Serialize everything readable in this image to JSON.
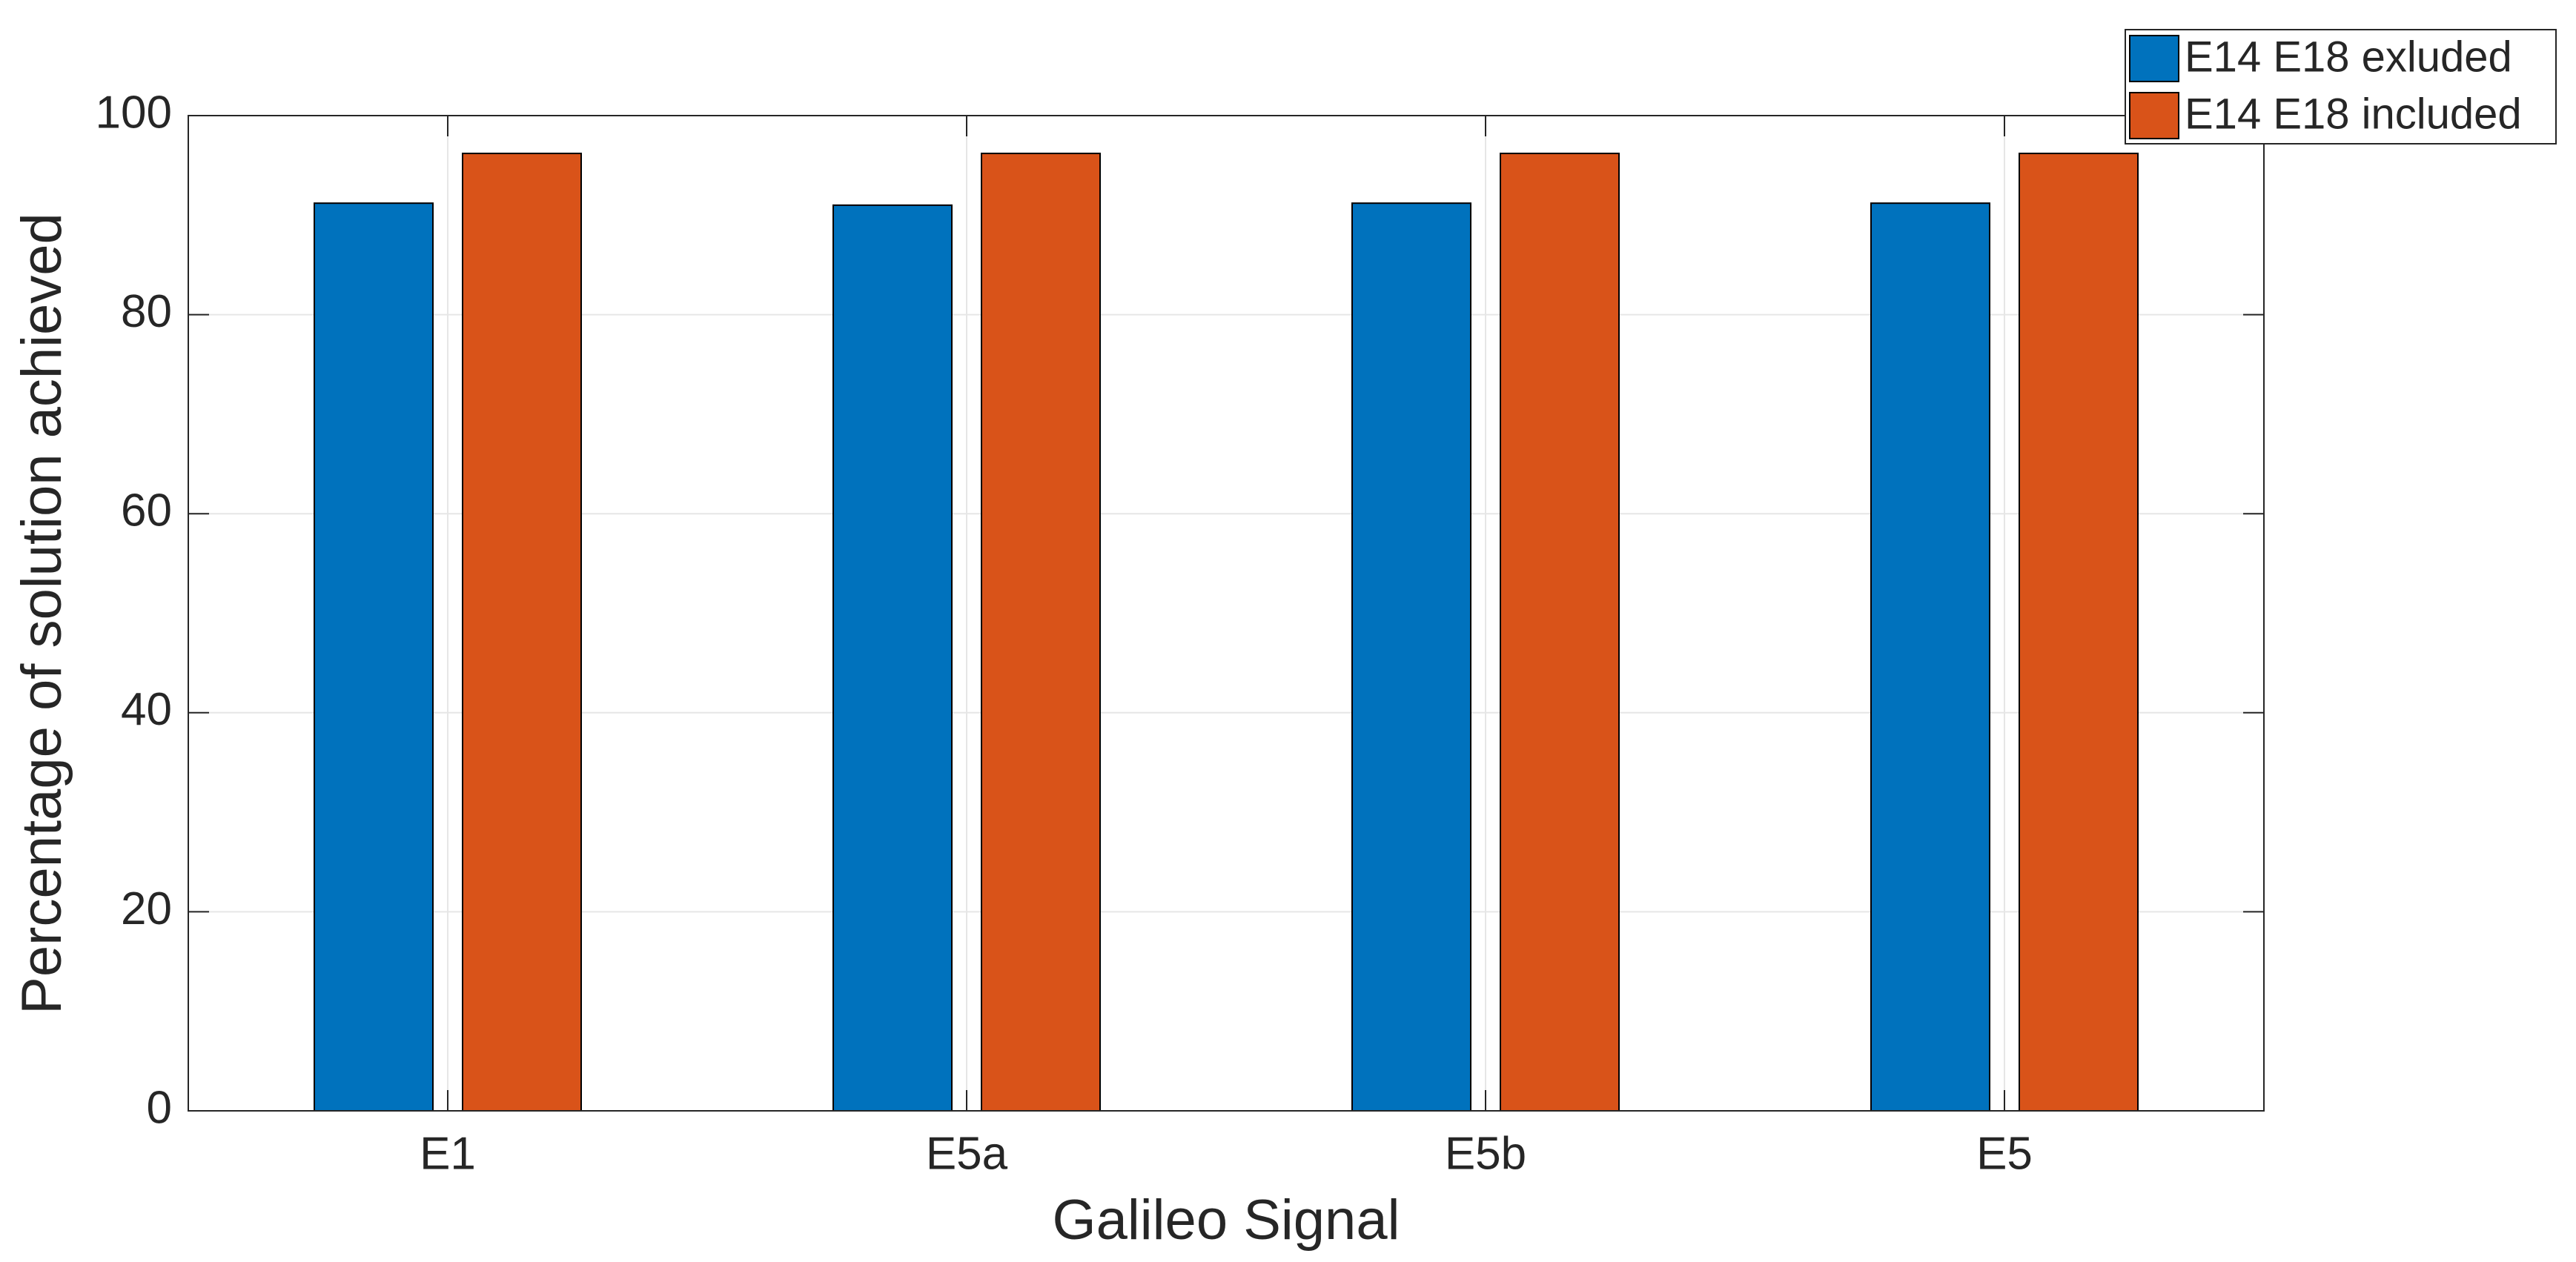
{
  "chart_data": {
    "type": "bar",
    "xlabel": "Galileo Signal",
    "ylabel": "Percentage of solution achieved",
    "categories": [
      "E1",
      "E5a",
      "E5b",
      "E5"
    ],
    "series": [
      {
        "name": "E14 E18 exluded",
        "color": "#0072bd",
        "values": [
          91.2,
          91.0,
          91.2,
          91.2
        ]
      },
      {
        "name": "E14 E18 included",
        "color": "#d95319",
        "values": [
          96.2,
          96.2,
          96.2,
          96.2
        ]
      }
    ],
    "ylim": [
      0,
      100
    ],
    "yticks": [
      0,
      20,
      40,
      60,
      80,
      100
    ],
    "grid": true,
    "legend": "top-right"
  }
}
